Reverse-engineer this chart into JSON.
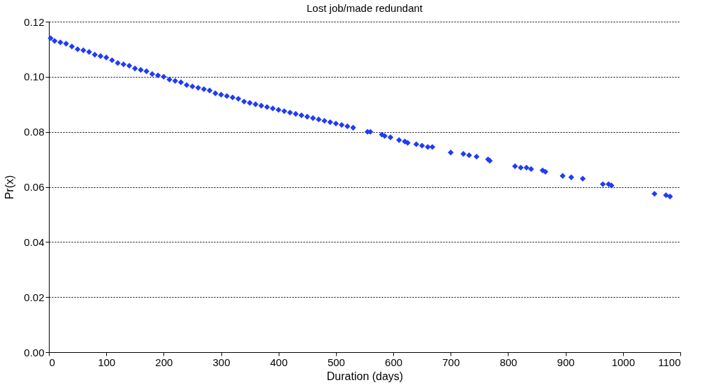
{
  "chart_data": {
    "type": "scatter",
    "title": "Lost job/made redundant",
    "xlabel": "Duration (days)",
    "ylabel": "Pr(x)",
    "x": [
      3,
      10,
      20,
      30,
      40,
      50,
      60,
      70,
      80,
      90,
      100,
      110,
      120,
      130,
      140,
      150,
      160,
      170,
      180,
      190,
      200,
      210,
      220,
      230,
      240,
      250,
      260,
      270,
      280,
      290,
      300,
      310,
      320,
      330,
      340,
      350,
      360,
      370,
      380,
      390,
      400,
      410,
      420,
      430,
      440,
      450,
      460,
      470,
      480,
      490,
      500,
      510,
      520,
      530,
      555,
      560,
      580,
      585,
      595,
      610,
      620,
      625,
      640,
      650,
      660,
      668,
      700,
      722,
      732,
      745,
      765,
      768,
      812,
      822,
      832,
      840,
      860,
      865,
      895,
      910,
      930,
      965,
      975,
      980,
      1055,
      1075,
      1082
    ],
    "series": [
      {
        "color": "#1f3cf5",
        "values": [
          0.114,
          0.113,
          0.1125,
          0.112,
          0.111,
          0.11,
          0.1096,
          0.109,
          0.108,
          0.1075,
          0.107,
          0.106,
          0.105,
          0.1045,
          0.104,
          0.103,
          0.1025,
          0.102,
          0.101,
          0.1005,
          0.1,
          0.099,
          0.0985,
          0.098,
          0.097,
          0.0965,
          0.096,
          0.0955,
          0.095,
          0.094,
          0.0935,
          0.093,
          0.0925,
          0.092,
          0.091,
          0.0905,
          0.09,
          0.0895,
          0.089,
          0.0885,
          0.088,
          0.0875,
          0.087,
          0.0865,
          0.086,
          0.0855,
          0.085,
          0.0845,
          0.084,
          0.0835,
          0.083,
          0.0825,
          0.082,
          0.0815,
          0.08,
          0.08,
          0.079,
          0.0785,
          0.078,
          0.077,
          0.0765,
          0.076,
          0.0755,
          0.075,
          0.0745,
          0.0745,
          0.0725,
          0.072,
          0.0715,
          0.071,
          0.07,
          0.0695,
          0.0675,
          0.067,
          0.067,
          0.0665,
          0.066,
          0.0655,
          0.064,
          0.0635,
          0.063,
          0.061,
          0.061,
          0.0605,
          0.0575,
          0.057,
          0.0565
        ]
      }
    ],
    "xlim": [
      0,
      1100
    ],
    "xticks": [
      0,
      100,
      200,
      300,
      400,
      500,
      600,
      700,
      800,
      900,
      1000,
      1100
    ],
    "ylim": [
      0,
      0.12
    ],
    "yticks": [
      {
        "value": 0,
        "label": "0.00"
      },
      {
        "value": 0.02,
        "label": "0.02"
      },
      {
        "value": 0.04,
        "label": "0.04"
      },
      {
        "value": 0.06,
        "label": "0.06"
      },
      {
        "value": 0.08,
        "label": "0.08"
      },
      {
        "value": 0.1,
        "label": "0.10"
      },
      {
        "value": 0.12,
        "label": "0.12"
      }
    ],
    "grid": "y",
    "marker": "diamond"
  }
}
